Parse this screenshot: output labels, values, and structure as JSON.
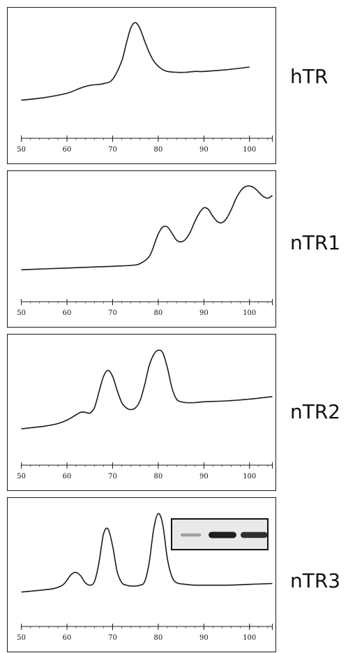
{
  "chart_data": [
    {
      "type": "line",
      "label": "hTR",
      "xlim": [
        47,
        106
      ],
      "ylim": [
        0,
        1
      ],
      "xticks": [
        50,
        60,
        70,
        80,
        90,
        100
      ],
      "series": [
        {
          "x": [
            50,
            55,
            60,
            63,
            65,
            68,
            70,
            72,
            73,
            74,
            75,
            76,
            77,
            78,
            79,
            80,
            81,
            82,
            84,
            86,
            88,
            90,
            95,
            100
          ],
          "y": [
            0.1,
            0.13,
            0.18,
            0.24,
            0.27,
            0.29,
            0.34,
            0.55,
            0.75,
            0.93,
            0.99,
            0.92,
            0.78,
            0.65,
            0.55,
            0.49,
            0.45,
            0.43,
            0.42,
            0.42,
            0.43,
            0.43,
            0.45,
            0.48
          ]
        }
      ]
    },
    {
      "type": "line",
      "label": "nTR1",
      "xlim": [
        47,
        106
      ],
      "ylim": [
        0,
        1
      ],
      "xticks": [
        50,
        60,
        70,
        80,
        90,
        100
      ],
      "series": [
        {
          "x": [
            50,
            55,
            60,
            65,
            70,
            74,
            76,
            78,
            79,
            80,
            81,
            82,
            83,
            84,
            85,
            86,
            87,
            88,
            89,
            90,
            91,
            92,
            93,
            94,
            95,
            96,
            97,
            98,
            99,
            100,
            101,
            102,
            103,
            104,
            105
          ],
          "y": [
            0.03,
            0.04,
            0.05,
            0.06,
            0.07,
            0.08,
            0.1,
            0.18,
            0.3,
            0.44,
            0.52,
            0.52,
            0.45,
            0.37,
            0.35,
            0.38,
            0.46,
            0.58,
            0.68,
            0.74,
            0.72,
            0.64,
            0.58,
            0.57,
            0.62,
            0.72,
            0.84,
            0.93,
            0.98,
            0.99,
            0.97,
            0.92,
            0.87,
            0.85,
            0.88
          ]
        }
      ]
    },
    {
      "type": "line",
      "label": "nTR2",
      "xlim": [
        47,
        106
      ],
      "ylim": [
        0,
        1
      ],
      "xticks": [
        50,
        60,
        70,
        80,
        90,
        100
      ],
      "series": [
        {
          "x": [
            50,
            55,
            58,
            60,
            62,
            63,
            64,
            65,
            66,
            67,
            68,
            69,
            70,
            71,
            72,
            73,
            74,
            75,
            76,
            77,
            78,
            79,
            80,
            81,
            82,
            83,
            84,
            85,
            86,
            88,
            90,
            95,
            100,
            105
          ],
          "y": [
            0.08,
            0.11,
            0.14,
            0.18,
            0.24,
            0.27,
            0.27,
            0.26,
            0.32,
            0.5,
            0.68,
            0.75,
            0.68,
            0.52,
            0.38,
            0.32,
            0.3,
            0.32,
            0.4,
            0.58,
            0.8,
            0.93,
            0.98,
            0.95,
            0.78,
            0.55,
            0.42,
            0.39,
            0.38,
            0.38,
            0.39,
            0.4,
            0.42,
            0.45
          ]
        }
      ]
    },
    {
      "type": "line",
      "label": "nTR3",
      "xlim": [
        47,
        106
      ],
      "ylim": [
        0,
        1
      ],
      "xticks": [
        50,
        60,
        70,
        80,
        90,
        100
      ],
      "series": [
        {
          "x": [
            50,
            54,
            57,
            59,
            60,
            61,
            62,
            63,
            64,
            65,
            66,
            67,
            68,
            69,
            70,
            71,
            72,
            73,
            74,
            75,
            76,
            77,
            78,
            79,
            80,
            81,
            82,
            83,
            84,
            86,
            88,
            90,
            95,
            100,
            105
          ],
          "y": [
            0.06,
            0.08,
            0.1,
            0.14,
            0.2,
            0.27,
            0.29,
            0.25,
            0.17,
            0.14,
            0.18,
            0.4,
            0.74,
            0.8,
            0.6,
            0.3,
            0.17,
            0.14,
            0.13,
            0.13,
            0.14,
            0.18,
            0.4,
            0.8,
            0.98,
            0.85,
            0.45,
            0.24,
            0.17,
            0.15,
            0.14,
            0.14,
            0.14,
            0.15,
            0.16
          ]
        }
      ],
      "inset": {
        "bands": [
          0.25,
          1.0,
          0.9
        ]
      }
    }
  ],
  "panels": [
    {
      "label": "hTR"
    },
    {
      "label": "nTR1"
    },
    {
      "label": "nTR2"
    },
    {
      "label": "nTR3"
    }
  ],
  "colors": {
    "line": "#1a1a1a",
    "frame": "#1a1a1a",
    "band": "#1e1e1e",
    "inset_bg": "#e9e9e9"
  }
}
